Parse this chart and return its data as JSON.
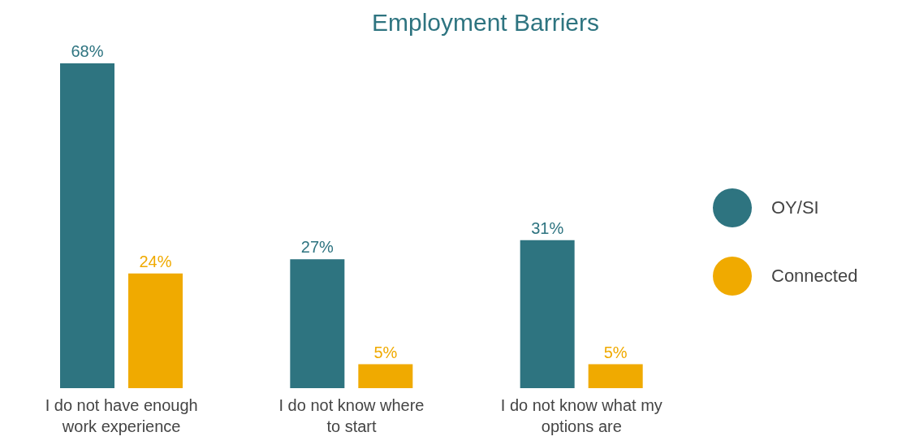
{
  "chart_data": {
    "type": "bar",
    "title": "Employment Barriers",
    "categories": [
      "I do not have enough work experience",
      "I do not know where to start",
      "I do not know what my options are"
    ],
    "series": [
      {
        "name": "OY/SI",
        "color": "#2e7480",
        "values": [
          68,
          27,
          31
        ],
        "value_labels": [
          "68%",
          "27%",
          "31%"
        ]
      },
      {
        "name": "Connected",
        "color": "#f0aa00",
        "values": [
          24,
          5,
          5
        ],
        "value_labels": [
          "24%",
          "5%",
          "5%"
        ]
      }
    ],
    "legend": "right"
  }
}
